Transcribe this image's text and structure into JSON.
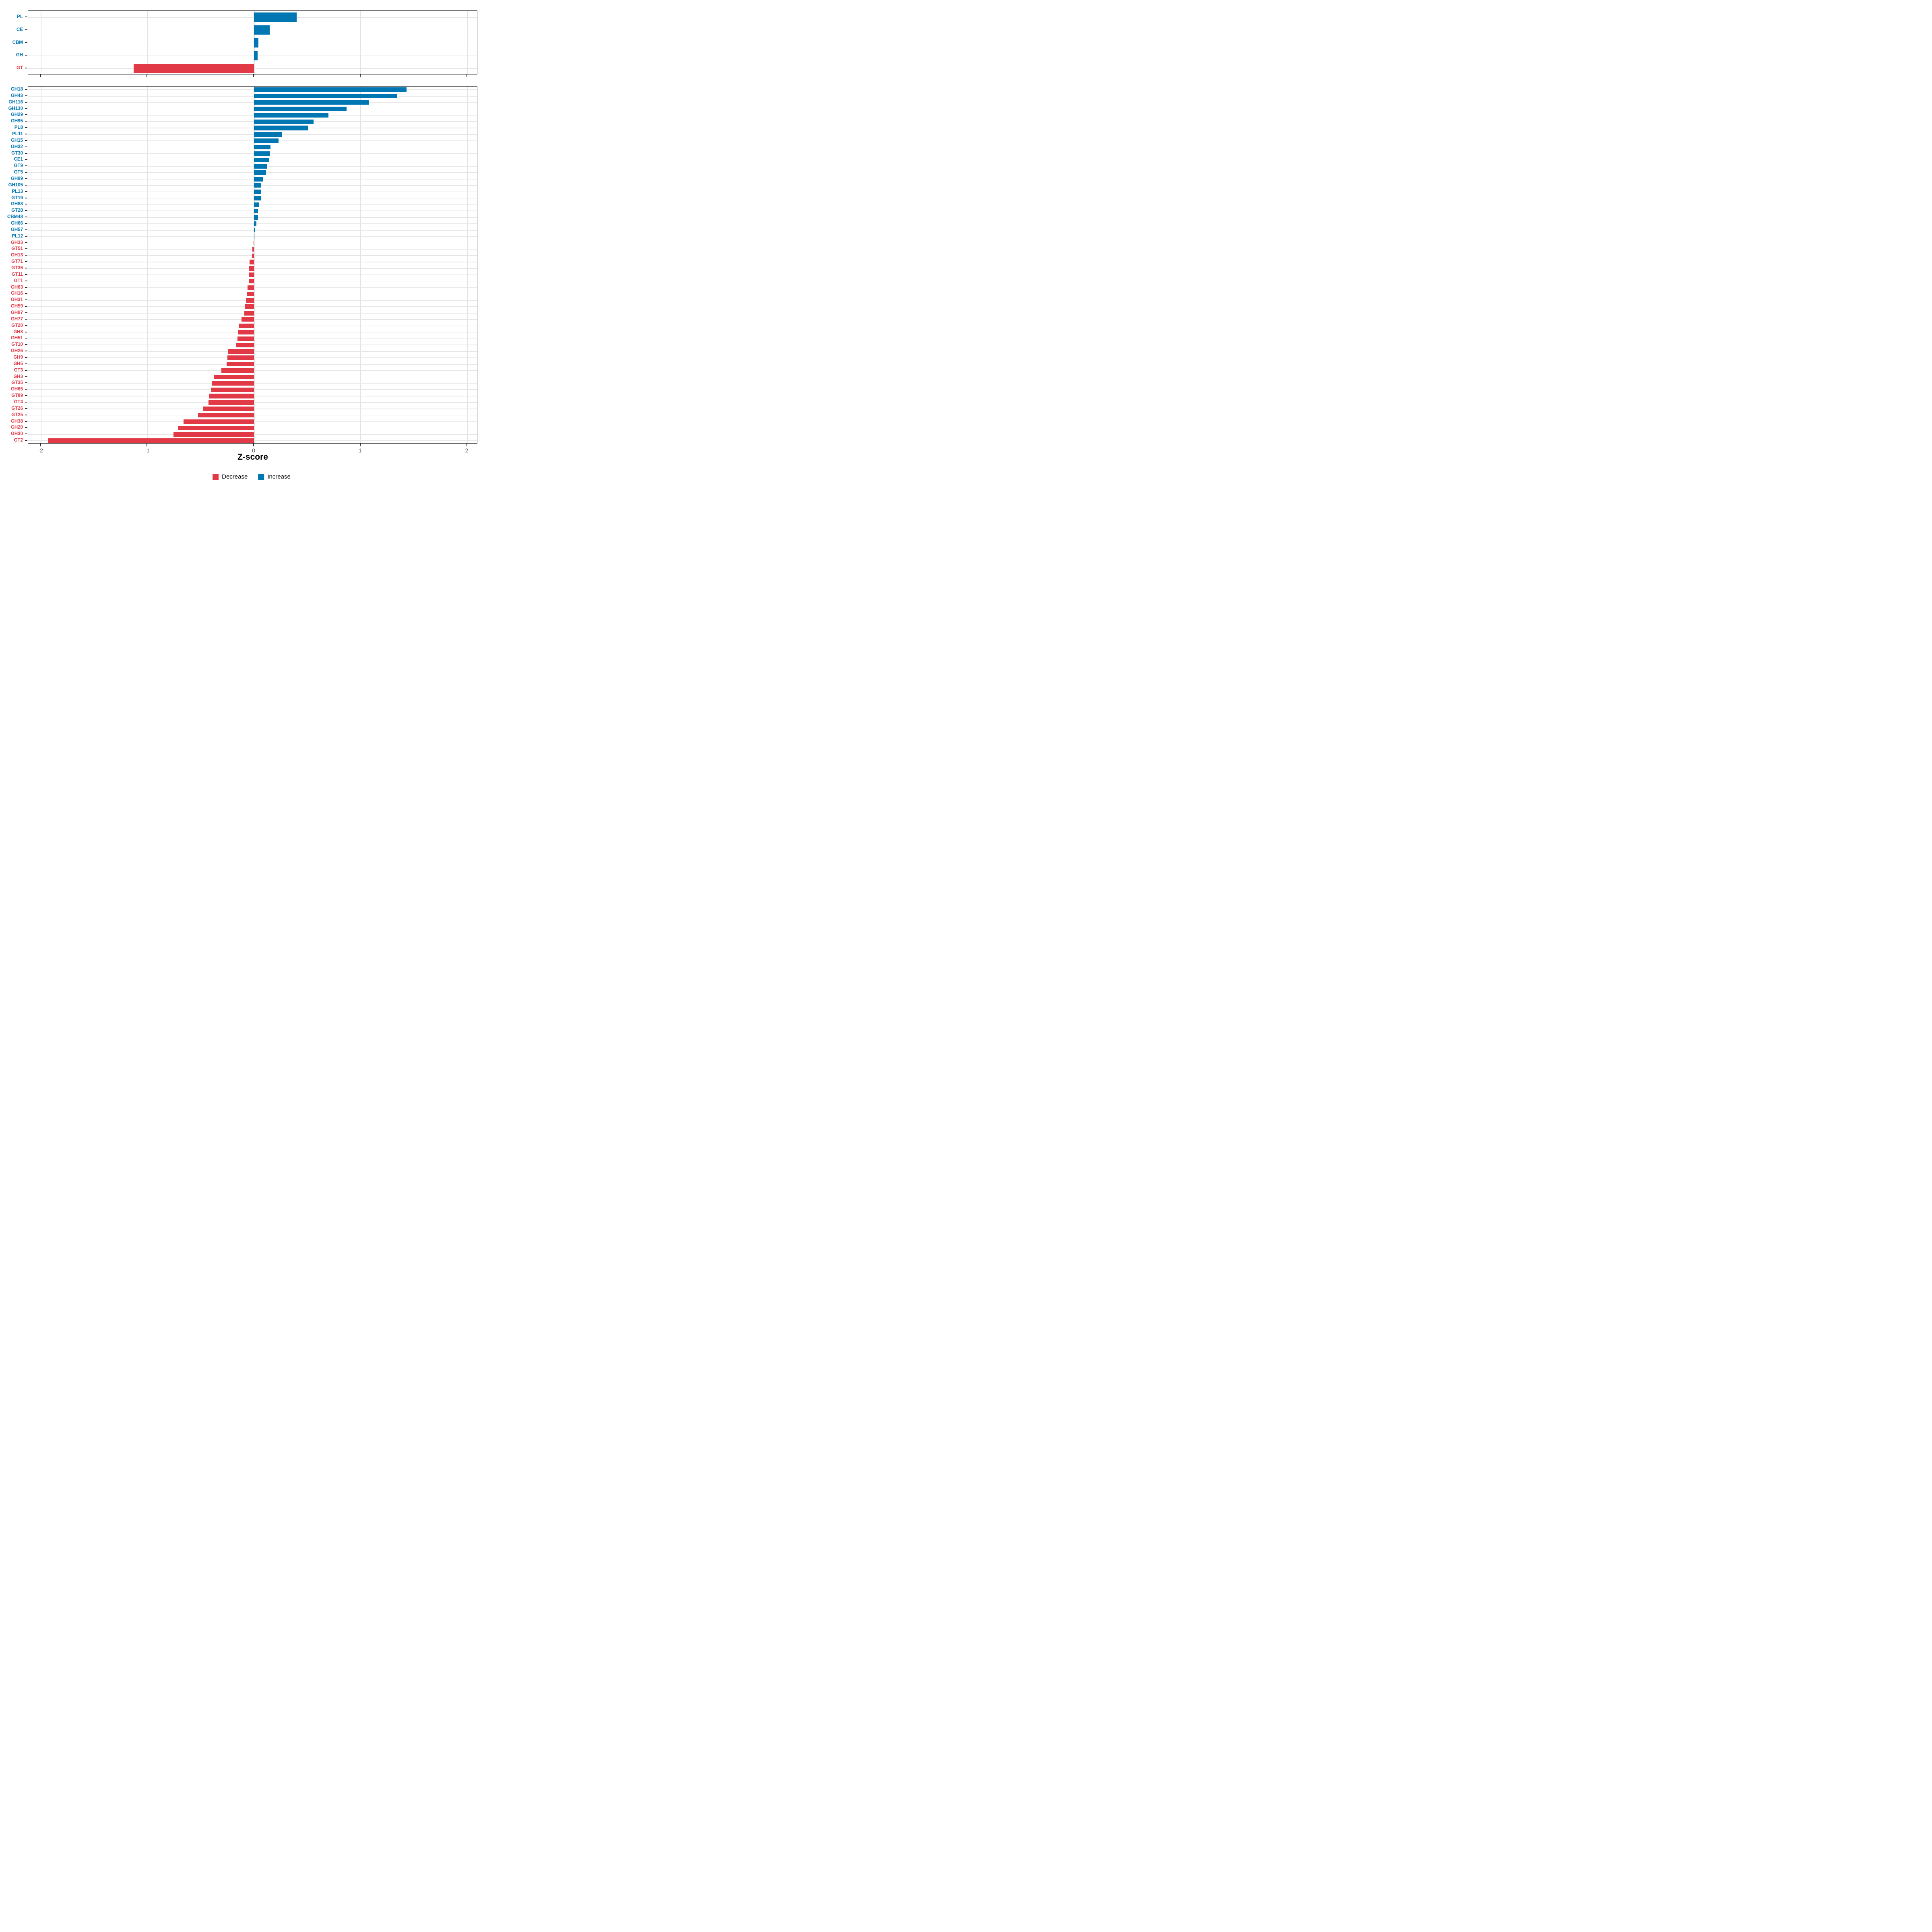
{
  "axis": {
    "title": "Z-score",
    "ticks": [
      -2,
      -1,
      0,
      1,
      2
    ],
    "tick_labels": [
      "-2",
      "-1",
      "0",
      "1",
      "2"
    ],
    "domain_min": -2.12,
    "domain_max": 2.1
  },
  "colors": {
    "increase": "#0076B3",
    "decrease": "#E23947",
    "grid": "#e6e6e6",
    "panel_border": "#1a1a1a",
    "tick_text": "#4d4d4d"
  },
  "legend": {
    "items": [
      {
        "label": "Decrease",
        "color": "#E23947"
      },
      {
        "label": "Increase",
        "color": "#0076B3"
      }
    ]
  },
  "chart_data": [
    {
      "type": "bar",
      "panel": "top",
      "orientation": "horizontal",
      "title": "",
      "xlabel": "Z-score",
      "xlim": [
        -2.12,
        2.1
      ],
      "grid": true,
      "categories": [
        "PL",
        "CE",
        "CBM",
        "GH",
        "GT"
      ],
      "values": [
        0.4,
        0.145,
        0.041,
        0.032,
        -1.13
      ]
    },
    {
      "type": "bar",
      "panel": "bottom",
      "orientation": "horizontal",
      "title": "",
      "xlabel": "Z-score",
      "xlim": [
        -2.12,
        2.1
      ],
      "grid": true,
      "categories": [
        "GH18",
        "GH43",
        "GH116",
        "GH130",
        "GH29",
        "GH95",
        "PL8",
        "PL11",
        "GH15",
        "GH32",
        "GT30",
        "CE1",
        "GT9",
        "GT5",
        "GH99",
        "GH105",
        "PL13",
        "GT19",
        "GH88",
        "GT28",
        "CBM48",
        "GH66",
        "GH57",
        "PL12",
        "GH33",
        "GT51",
        "GH13",
        "GT71",
        "GT36",
        "GT11",
        "GT1",
        "GH63",
        "GH16",
        "GH31",
        "GH59",
        "GH97",
        "GH77",
        "GT20",
        "GH8",
        "GH51",
        "GT10",
        "GH26",
        "GH9",
        "GH5",
        "GT3",
        "GH3",
        "GT35",
        "GH65",
        "GT89",
        "GT4",
        "GT26",
        "GT25",
        "GH38",
        "GH20",
        "GH30",
        "GT2"
      ],
      "values": [
        1.43,
        1.34,
        1.08,
        0.87,
        0.7,
        0.56,
        0.51,
        0.26,
        0.23,
        0.155,
        0.15,
        0.143,
        0.122,
        0.114,
        0.085,
        0.066,
        0.064,
        0.062,
        0.05,
        0.039,
        0.037,
        0.023,
        0.007,
        0.004,
        -0.005,
        -0.017,
        -0.02,
        -0.044,
        -0.045,
        -0.046,
        -0.047,
        -0.06,
        -0.064,
        -0.076,
        -0.084,
        -0.09,
        -0.118,
        -0.142,
        -0.153,
        -0.156,
        -0.168,
        -0.247,
        -0.251,
        -0.256,
        -0.308,
        -0.375,
        -0.398,
        -0.4,
        -0.42,
        -0.428,
        -0.475,
        -0.527,
        -0.66,
        -0.713,
        -0.755,
        -1.93
      ]
    }
  ],
  "series_semantics": {
    "positive": "Increase",
    "negative": "Decrease"
  }
}
